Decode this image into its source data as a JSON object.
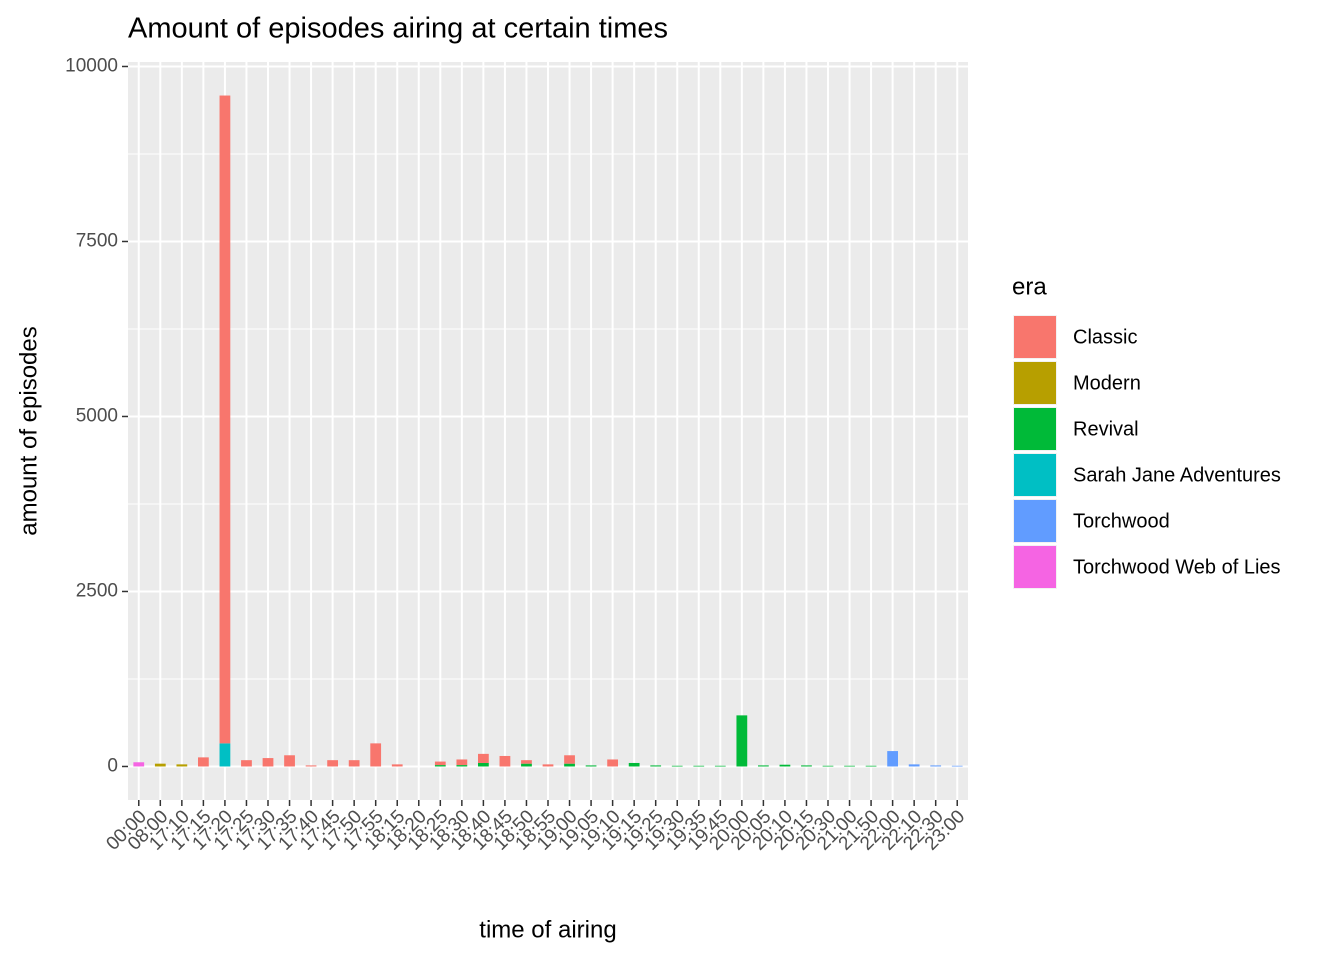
{
  "chart_data": {
    "type": "bar",
    "stacked": true,
    "title": "Amount of episodes airing at certain times",
    "x_label": "time of airing",
    "y_label": "amount of episodes",
    "legend_title": "era",
    "legend_position": "right",
    "categories": [
      "00:00",
      "08:00",
      "17:10",
      "17:15",
      "17:20",
      "17:25",
      "17:30",
      "17:35",
      "17:40",
      "17:45",
      "17:50",
      "17:55",
      "18:15",
      "18:20",
      "18:25",
      "18:30",
      "18:40",
      "18:45",
      "18:50",
      "18:55",
      "19:00",
      "19:05",
      "19:10",
      "19:15",
      "19:25",
      "19:30",
      "19:35",
      "19:45",
      "20:00",
      "20:05",
      "20:10",
      "20:15",
      "20:30",
      "21:00",
      "21:50",
      "22:00",
      "22:10",
      "22:30",
      "23:00"
    ],
    "series": [
      {
        "name": "Classic",
        "color": "#F8766D",
        "values": [
          null,
          null,
          null,
          130,
          9255,
          90,
          120,
          160,
          15,
          90,
          90,
          330,
          30,
          null,
          50,
          80,
          130,
          150,
          50,
          30,
          120,
          null,
          100,
          null,
          null,
          null,
          null,
          null,
          null,
          null,
          null,
          null,
          null,
          null,
          null,
          null,
          null,
          null,
          null
        ]
      },
      {
        "name": "Modern",
        "color": "#B79F00",
        "values": [
          null,
          40,
          30,
          null,
          null,
          null,
          null,
          null,
          null,
          null,
          null,
          null,
          null,
          null,
          null,
          null,
          null,
          null,
          null,
          null,
          null,
          null,
          null,
          null,
          null,
          null,
          null,
          null,
          null,
          null,
          null,
          null,
          null,
          null,
          null,
          null,
          null,
          null,
          null
        ]
      },
      {
        "name": "Revival",
        "color": "#00BA38",
        "values": [
          null,
          null,
          null,
          null,
          null,
          null,
          null,
          null,
          null,
          null,
          null,
          null,
          null,
          null,
          20,
          20,
          50,
          null,
          40,
          null,
          40,
          15,
          null,
          50,
          15,
          10,
          10,
          10,
          730,
          15,
          25,
          15,
          10,
          10,
          10,
          null,
          null,
          null,
          null
        ]
      },
      {
        "name": "Sarah Jane Adventures",
        "color": "#00BFC4",
        "values": [
          null,
          null,
          null,
          null,
          330,
          null,
          null,
          null,
          null,
          null,
          null,
          null,
          null,
          null,
          null,
          null,
          null,
          null,
          null,
          null,
          null,
          null,
          null,
          null,
          null,
          null,
          null,
          null,
          null,
          null,
          null,
          null,
          null,
          null,
          null,
          null,
          null,
          null,
          null
        ]
      },
      {
        "name": "Torchwood",
        "color": "#619CFF",
        "values": [
          null,
          null,
          null,
          null,
          null,
          null,
          null,
          null,
          null,
          null,
          null,
          null,
          null,
          null,
          null,
          null,
          null,
          null,
          null,
          null,
          null,
          null,
          null,
          null,
          null,
          null,
          null,
          null,
          null,
          null,
          null,
          null,
          null,
          null,
          null,
          220,
          30,
          15,
          10
        ]
      },
      {
        "name": "Torchwood Web of Lies",
        "color": "#F564E3",
        "values": [
          60,
          null,
          null,
          null,
          null,
          null,
          null,
          null,
          null,
          null,
          null,
          null,
          null,
          null,
          null,
          null,
          null,
          null,
          null,
          null,
          null,
          null,
          null,
          null,
          null,
          null,
          null,
          null,
          null,
          null,
          null,
          null,
          null,
          null,
          null,
          null,
          null,
          null,
          null
        ]
      }
    ],
    "ylim": [
      -479,
      10064
    ],
    "yticks": [
      0,
      2500,
      5000,
      7500,
      10000
    ],
    "grid": true
  }
}
